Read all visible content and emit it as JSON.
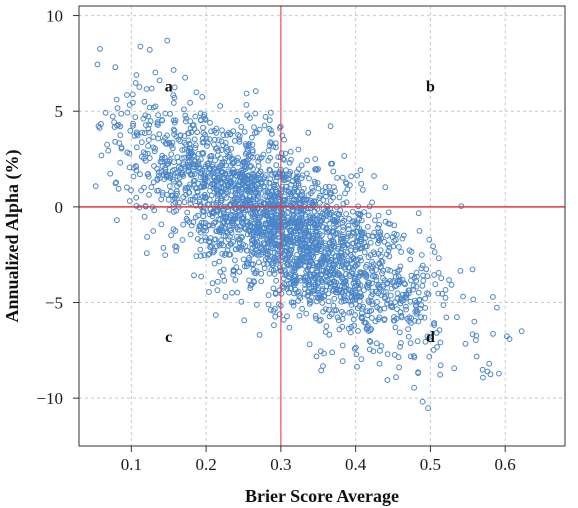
{
  "chart_data": {
    "type": "scatter",
    "xlabel": "Brier Score Average",
    "ylabel": "Annualized Alpha (%)",
    "xlim": [
      0.03,
      0.68
    ],
    "ylim": [
      -12.5,
      10.5
    ],
    "x_ticks": [
      0.1,
      0.2,
      0.3,
      0.4,
      0.5,
      0.6
    ],
    "x_tick_labels": [
      "0.1",
      "0.2",
      "0.3",
      "0.4",
      "0.5",
      "0.6"
    ],
    "y_ticks": [
      -10,
      -5,
      0,
      5,
      10
    ],
    "y_tick_labels": [
      "−10",
      "−5",
      "0",
      "5",
      "10"
    ],
    "grid": true,
    "reference_lines": {
      "vertical_x": 0.3,
      "horizontal_y": 0
    },
    "quadrant_labels": [
      {
        "text": "a",
        "x": 0.15,
        "y": 6.3
      },
      {
        "text": "b",
        "x": 0.5,
        "y": 6.3
      },
      {
        "text": "c",
        "x": 0.15,
        "y": -6.8
      },
      {
        "text": "d",
        "x": 0.5,
        "y": -6.8
      }
    ],
    "point_cloud": {
      "n_points": 2600,
      "trend": {
        "x0": 0.12,
        "y0": 3.0,
        "slope": -22.0
      },
      "spread": 2.0,
      "x_range": [
        0.05,
        0.67
      ]
    }
  },
  "colors": {
    "points": "#4a86c8",
    "reference_lines": "#e8353b",
    "grid": "#c8c8c8",
    "axis": "#333333"
  }
}
